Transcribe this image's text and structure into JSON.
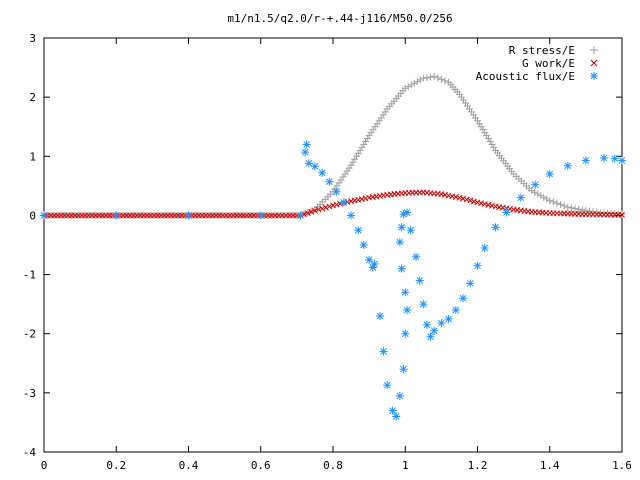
{
  "chart_data": {
    "type": "scatter",
    "title": "m1/n1.5/q2.0/r-+.44-j116/M50.0/256",
    "xlabel": "",
    "ylabel": "",
    "xlim": [
      0,
      1.6
    ],
    "ylim": [
      -4,
      3
    ],
    "x_ticks": [
      "0",
      "0.2",
      "0.4",
      "0.6",
      "0.8",
      "1",
      "1.2",
      "1.4",
      "1.6"
    ],
    "y_ticks": [
      "3",
      "2",
      "1",
      "0",
      "-1",
      "-2",
      "-3",
      "-4"
    ],
    "grid": false,
    "legend_position": "top-right",
    "series": [
      {
        "name": "R stress/E",
        "marker": "plus",
        "color": "#a0a0a0",
        "points": [
          [
            0.0,
            0.0
          ],
          [
            0.2,
            0.0
          ],
          [
            0.4,
            0.0
          ],
          [
            0.6,
            0.0
          ],
          [
            0.71,
            0.0
          ],
          [
            0.75,
            0.1
          ],
          [
            0.8,
            0.4
          ],
          [
            0.85,
            0.85
          ],
          [
            0.9,
            1.35
          ],
          [
            0.95,
            1.8
          ],
          [
            1.0,
            2.15
          ],
          [
            1.05,
            2.32
          ],
          [
            1.08,
            2.35
          ],
          [
            1.12,
            2.25
          ],
          [
            1.15,
            2.05
          ],
          [
            1.2,
            1.6
          ],
          [
            1.25,
            1.1
          ],
          [
            1.3,
            0.7
          ],
          [
            1.35,
            0.42
          ],
          [
            1.4,
            0.25
          ],
          [
            1.45,
            0.14
          ],
          [
            1.5,
            0.08
          ],
          [
            1.55,
            0.04
          ],
          [
            1.6,
            0.02
          ]
        ]
      },
      {
        "name": "G work/E",
        "marker": "cross",
        "color": "#cc0000",
        "points": [
          [
            0.0,
            0.0
          ],
          [
            0.2,
            0.0
          ],
          [
            0.4,
            0.0
          ],
          [
            0.6,
            0.0
          ],
          [
            0.71,
            0.0
          ],
          [
            0.75,
            0.08
          ],
          [
            0.8,
            0.17
          ],
          [
            0.85,
            0.24
          ],
          [
            0.9,
            0.3
          ],
          [
            0.95,
            0.35
          ],
          [
            1.0,
            0.38
          ],
          [
            1.05,
            0.39
          ],
          [
            1.1,
            0.36
          ],
          [
            1.15,
            0.3
          ],
          [
            1.2,
            0.22
          ],
          [
            1.25,
            0.15
          ],
          [
            1.3,
            0.1
          ],
          [
            1.35,
            0.06
          ],
          [
            1.4,
            0.04
          ],
          [
            1.5,
            0.02
          ],
          [
            1.6,
            0.01
          ]
        ]
      },
      {
        "name": "Acoustic flux/E",
        "marker": "star",
        "color": "#1e90ff",
        "points": [
          [
            0.0,
            0.0
          ],
          [
            0.2,
            0.0
          ],
          [
            0.4,
            0.0
          ],
          [
            0.6,
            0.0
          ],
          [
            0.71,
            0.0
          ],
          [
            0.723,
            1.07
          ],
          [
            0.727,
            1.2
          ],
          [
            0.733,
            0.88
          ],
          [
            0.75,
            0.83
          ],
          [
            0.77,
            0.72
          ],
          [
            0.79,
            0.57
          ],
          [
            0.81,
            0.4
          ],
          [
            0.83,
            0.22
          ],
          [
            0.85,
            0.0
          ],
          [
            0.87,
            -0.25
          ],
          [
            0.885,
            -0.5
          ],
          [
            0.9,
            -0.75
          ],
          [
            0.91,
            -0.88
          ],
          [
            0.915,
            -0.82
          ],
          [
            0.93,
            -1.7
          ],
          [
            0.94,
            -2.3
          ],
          [
            0.95,
            -2.87
          ],
          [
            0.965,
            -3.3
          ],
          [
            0.975,
            -3.4
          ],
          [
            0.985,
            -3.05
          ],
          [
            0.995,
            -2.6
          ],
          [
            1.0,
            -2.0
          ],
          [
            1.005,
            -1.6
          ],
          [
            1.0,
            -1.3
          ],
          [
            0.99,
            -0.9
          ],
          [
            0.985,
            -0.45
          ],
          [
            0.99,
            -0.2
          ],
          [
            0.995,
            0.02
          ],
          [
            1.005,
            0.05
          ],
          [
            1.015,
            -0.25
          ],
          [
            1.03,
            -0.7
          ],
          [
            1.04,
            -1.1
          ],
          [
            1.05,
            -1.5
          ],
          [
            1.06,
            -1.85
          ],
          [
            1.07,
            -2.05
          ],
          [
            1.08,
            -1.95
          ],
          [
            1.1,
            -1.82
          ],
          [
            1.12,
            -1.75
          ],
          [
            1.14,
            -1.6
          ],
          [
            1.16,
            -1.4
          ],
          [
            1.18,
            -1.15
          ],
          [
            1.2,
            -0.85
          ],
          [
            1.22,
            -0.55
          ],
          [
            1.25,
            -0.2
          ],
          [
            1.28,
            0.05
          ],
          [
            1.32,
            0.3
          ],
          [
            1.36,
            0.52
          ],
          [
            1.4,
            0.7
          ],
          [
            1.45,
            0.84
          ],
          [
            1.5,
            0.93
          ],
          [
            1.55,
            0.97
          ],
          [
            1.58,
            0.96
          ],
          [
            1.6,
            0.93
          ]
        ]
      }
    ]
  }
}
